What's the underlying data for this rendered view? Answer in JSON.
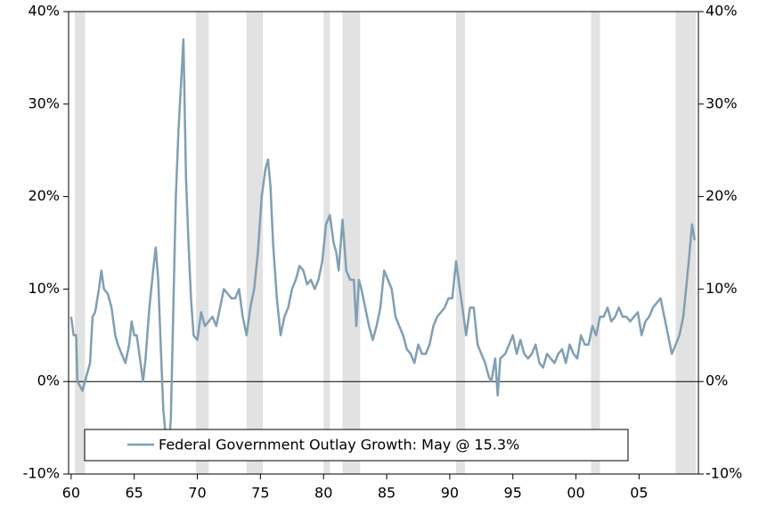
{
  "chart_data": {
    "type": "line",
    "legend": "bottom",
    "xlim": [
      1959.8,
      2009.7
    ],
    "ylim": [
      -10,
      40
    ],
    "y2lim": [
      -10,
      40
    ],
    "xticks": [
      {
        "value": 1960,
        "label": "60"
      },
      {
        "value": 1965,
        "label": "65"
      },
      {
        "value": 1970,
        "label": "70"
      },
      {
        "value": 1975,
        "label": "75"
      },
      {
        "value": 1980,
        "label": "80"
      },
      {
        "value": 1985,
        "label": "85"
      },
      {
        "value": 1990,
        "label": "90"
      },
      {
        "value": 1995,
        "label": "95"
      },
      {
        "value": 2000,
        "label": "00"
      },
      {
        "value": 2005,
        "label": "05"
      }
    ],
    "yticks": [
      {
        "value": -10,
        "label": "-10%"
      },
      {
        "value": 0,
        "label": "0%"
      },
      {
        "value": 10,
        "label": "10%"
      },
      {
        "value": 20,
        "label": "20%"
      },
      {
        "value": 30,
        "label": "30%"
      },
      {
        "value": 40,
        "label": "40%"
      }
    ],
    "y2ticks": [
      {
        "value": -10,
        "label": "-10%"
      },
      {
        "value": 0,
        "label": "0%"
      },
      {
        "value": 10,
        "label": "10%"
      },
      {
        "value": 20,
        "label": "20%"
      },
      {
        "value": 30,
        "label": "30%"
      },
      {
        "value": 40,
        "label": "40%"
      }
    ],
    "recession_color": "#e2e2e2",
    "recessions": [
      [
        1960.3,
        1961.1
      ],
      [
        1969.9,
        1970.9
      ],
      [
        1973.9,
        1975.2
      ],
      [
        1980.0,
        1980.5
      ],
      [
        1981.5,
        1982.9
      ],
      [
        1990.5,
        1991.2
      ],
      [
        2001.2,
        2001.9
      ],
      [
        2007.9,
        2009.5
      ]
    ],
    "series": [
      {
        "name": "Federal Government Outlay Growth: May @ 15.3%",
        "color": "#7f9fb4",
        "x": [
          1960.0,
          1960.2,
          1960.4,
          1960.5,
          1960.7,
          1960.9,
          1961.2,
          1961.5,
          1961.7,
          1961.9,
          1962.2,
          1962.4,
          1962.6,
          1962.9,
          1963.2,
          1963.5,
          1963.7,
          1964.0,
          1964.3,
          1964.6,
          1964.8,
          1965.0,
          1965.2,
          1965.5,
          1965.7,
          1965.9,
          1966.2,
          1966.5,
          1966.7,
          1966.9,
          1967.1,
          1967.3,
          1967.5,
          1967.7,
          1967.9,
          1968.1,
          1968.3,
          1968.5,
          1968.7,
          1968.9,
          1969.1,
          1969.3,
          1969.5,
          1969.7,
          1970.0,
          1970.3,
          1970.6,
          1970.9,
          1971.2,
          1971.5,
          1971.8,
          1972.1,
          1972.4,
          1972.7,
          1973.0,
          1973.3,
          1973.6,
          1973.9,
          1974.2,
          1974.5,
          1974.8,
          1975.1,
          1975.4,
          1975.6,
          1975.8,
          1976.0,
          1976.3,
          1976.6,
          1976.9,
          1977.2,
          1977.5,
          1977.8,
          1978.1,
          1978.4,
          1978.7,
          1979.0,
          1979.3,
          1979.6,
          1979.9,
          1980.2,
          1980.5,
          1980.8,
          1981.0,
          1981.2,
          1981.5,
          1981.8,
          1982.1,
          1982.4,
          1982.6,
          1982.8,
          1983.0,
          1983.3,
          1983.6,
          1983.9,
          1984.2,
          1984.5,
          1984.8,
          1985.1,
          1985.4,
          1985.7,
          1986.0,
          1986.3,
          1986.6,
          1986.9,
          1987.2,
          1987.5,
          1987.8,
          1988.1,
          1988.4,
          1988.7,
          1989.0,
          1989.3,
          1989.6,
          1989.9,
          1990.2,
          1990.5,
          1990.8,
          1991.0,
          1991.3,
          1991.6,
          1991.9,
          1992.2,
          1992.5,
          1992.8,
          1993.1,
          1993.3,
          1993.6,
          1993.8,
          1994.0,
          1994.4,
          1994.7,
          1995.0,
          1995.3,
          1995.6,
          1995.9,
          1996.2,
          1996.5,
          1996.8,
          1997.1,
          1997.4,
          1997.7,
          1998.0,
          1998.3,
          1998.6,
          1998.9,
          1999.2,
          1999.5,
          1999.8,
          2000.1,
          2000.4,
          2000.7,
          2001.0,
          2001.3,
          2001.6,
          2001.9,
          2002.2,
          2002.5,
          2002.8,
          2003.1,
          2003.4,
          2003.7,
          2004.0,
          2004.3,
          2004.6,
          2004.9,
          2005.2,
          2005.5,
          2005.8,
          2006.1,
          2006.4,
          2006.7,
          2007.0,
          2007.3,
          2007.6,
          2007.9,
          2008.2,
          2008.5,
          2008.8,
          2009.0,
          2009.2,
          2009.4
        ],
        "values": [
          7,
          5,
          5,
          0,
          -0.5,
          -1,
          0.5,
          2,
          7,
          7.5,
          10,
          12,
          10,
          9.5,
          8,
          5,
          4,
          3,
          2,
          4,
          6.5,
          5,
          5,
          2,
          0,
          2.5,
          8,
          12,
          14.5,
          11,
          4,
          -3,
          -6,
          -8,
          -4,
          8,
          20,
          27,
          32,
          37,
          22,
          15,
          9,
          5,
          4.5,
          7.5,
          6,
          6.5,
          7,
          6,
          8,
          10,
          9.5,
          9,
          9,
          10,
          7,
          5,
          8,
          10,
          14,
          20,
          23,
          24,
          21,
          15,
          9,
          5,
          7,
          8,
          10,
          11,
          12.5,
          12,
          10.5,
          11,
          10,
          11,
          13,
          17,
          18,
          15,
          14,
          12,
          17.5,
          12,
          11,
          11,
          6,
          11,
          10,
          8,
          6,
          4.5,
          6,
          8,
          12,
          11,
          10,
          7,
          6,
          5,
          3.5,
          3,
          2,
          4,
          3,
          3,
          4,
          6,
          7,
          7.5,
          8,
          9,
          9,
          13,
          10,
          8,
          5,
          8,
          8,
          4,
          3,
          2,
          0.5,
          0,
          2.5,
          -1.5,
          2.5,
          3,
          4,
          5,
          3,
          4.5,
          3,
          2.5,
          3,
          4,
          2,
          1.5,
          3,
          2.5,
          2,
          3,
          3.5,
          2,
          4,
          3,
          2.5,
          5,
          4,
          4,
          6,
          5,
          7,
          7,
          8,
          6.5,
          7,
          8,
          7,
          7,
          6.5,
          7,
          7.5,
          5,
          6.5,
          7,
          8,
          8.5,
          9,
          7,
          5,
          3,
          4,
          5,
          7,
          11,
          14,
          17,
          15.3
        ]
      }
    ]
  }
}
